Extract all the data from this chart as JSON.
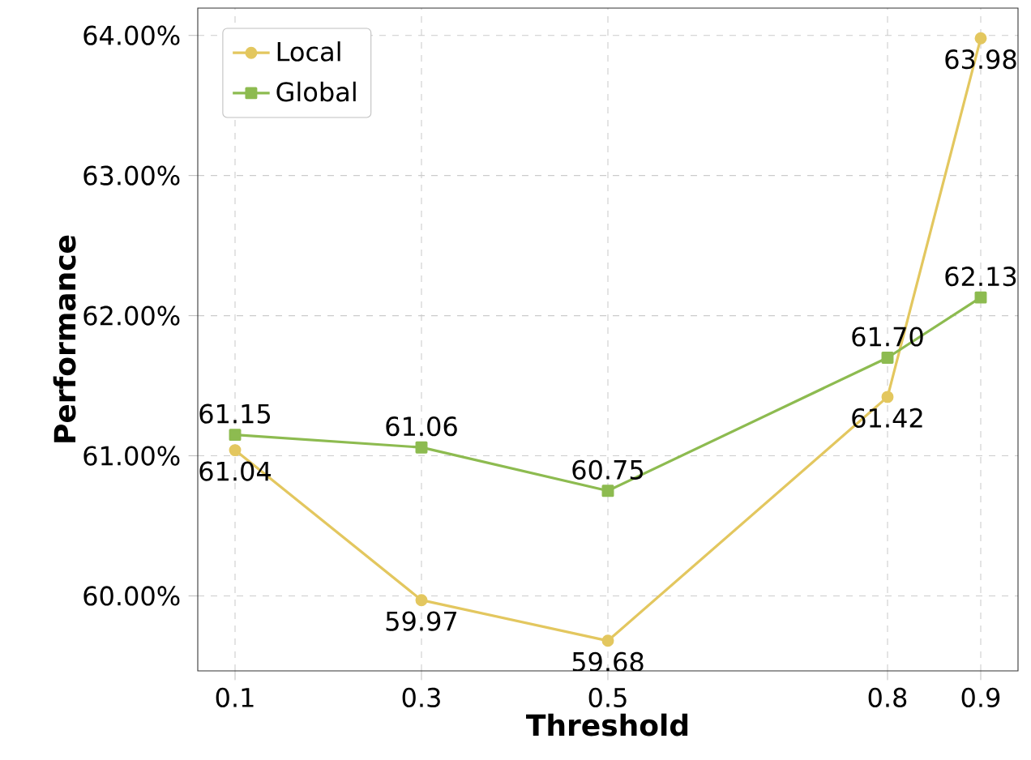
{
  "chart_data": {
    "type": "line",
    "xlabel": "Threshold",
    "ylabel": "Performance",
    "x": [
      0.1,
      0.3,
      0.5,
      0.8,
      0.9
    ],
    "series": [
      {
        "name": "Local",
        "color": "#e3c75f",
        "marker": "circle",
        "values": [
          61.04,
          59.97,
          59.68,
          61.42,
          63.98
        ],
        "value_labels": [
          "61.04",
          "59.97",
          "59.68",
          "61.42",
          "63.98"
        ]
      },
      {
        "name": "Global",
        "color": "#8dbb50",
        "marker": "square",
        "values": [
          61.15,
          61.06,
          60.75,
          61.7,
          62.13
        ],
        "value_labels": [
          "61.15",
          "61.06",
          "60.75",
          "61.70",
          "62.13"
        ]
      }
    ],
    "xlim": [
      0.06,
      0.94
    ],
    "xticks": [
      0.1,
      0.3,
      0.5,
      0.8,
      0.9
    ],
    "ylim": [
      59.465,
      64.195
    ],
    "yticks": [
      {
        "value": 60,
        "label": "60.00%"
      },
      {
        "value": 61,
        "label": "61.00%"
      },
      {
        "value": 62,
        "label": "62.00%"
      },
      {
        "value": 63,
        "label": "63.00%"
      },
      {
        "value": 64,
        "label": "64.00%"
      }
    ],
    "grid": true,
    "legend": "top left",
    "line_style": "solid"
  }
}
